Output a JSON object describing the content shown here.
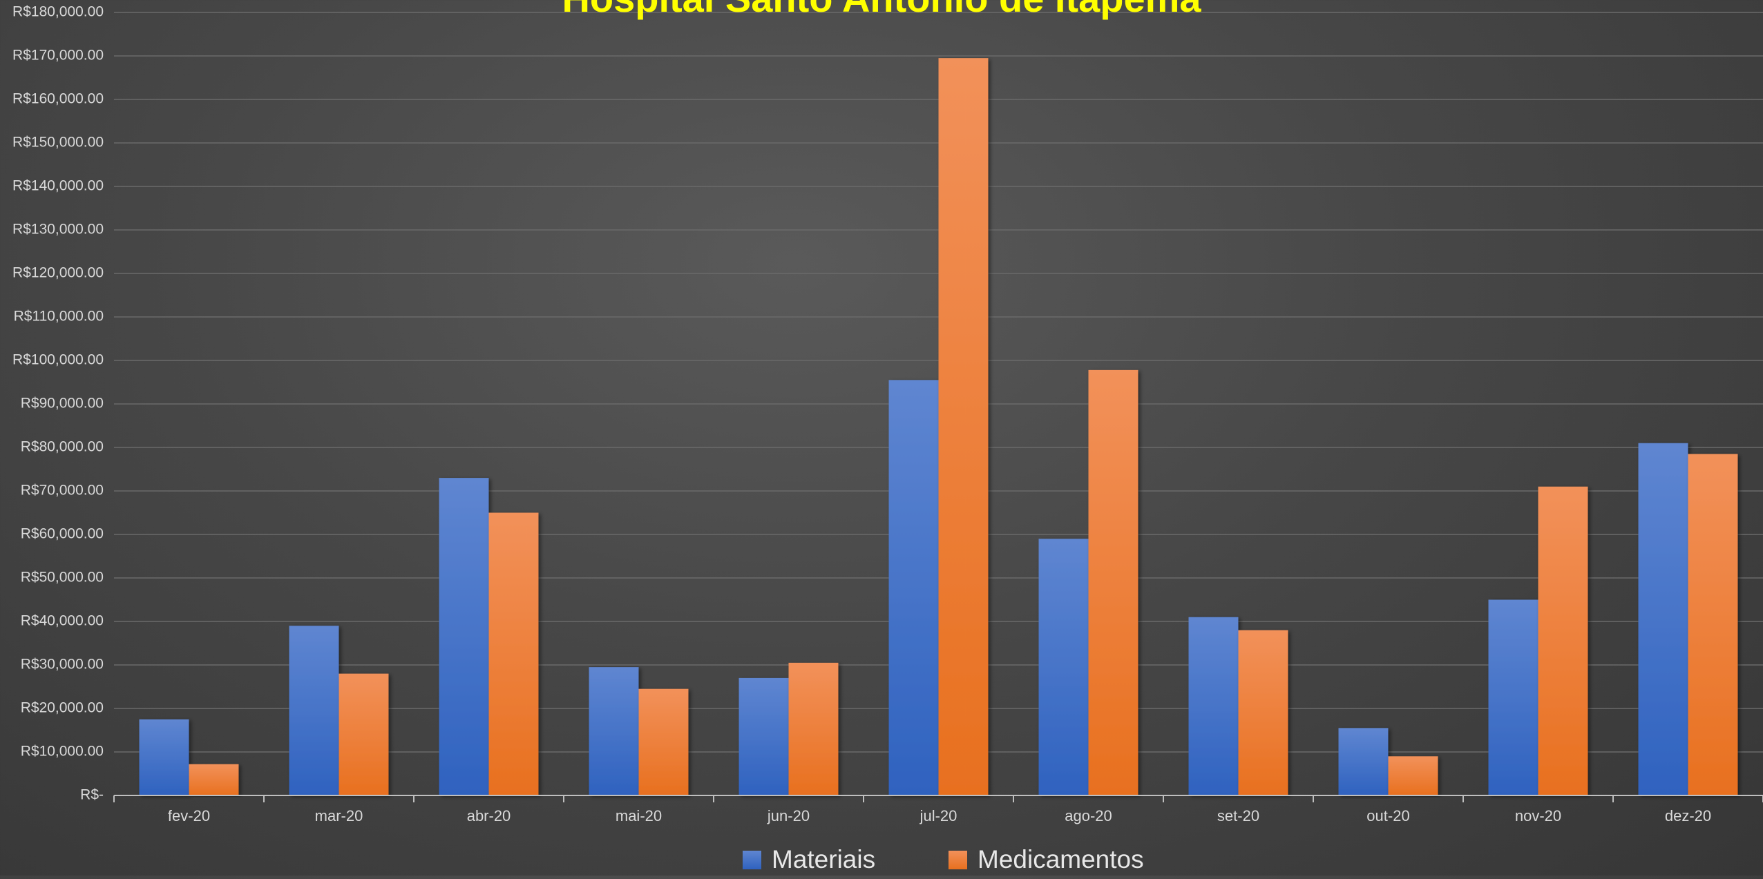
{
  "colors": {
    "materiais": "#4472c4",
    "medicamentos": "#ed7d31",
    "title": "#ffff00",
    "axis_text": "#d9d9d9",
    "legend_text": "#e8e8e8",
    "gridline": "#6a6a6a",
    "axis_line": "#bfbfbf"
  },
  "chart_data": {
    "type": "bar",
    "title": "Hospital Santo Antônio de Itapema",
    "xlabel": "",
    "ylabel": "",
    "categories": [
      "fev-20",
      "mar-20",
      "abr-20",
      "mai-20",
      "jun-20",
      "jul-20",
      "ago-20",
      "set-20",
      "out-20",
      "nov-20",
      "dez-20"
    ],
    "series": [
      {
        "name": "Materiais",
        "values": [
          17500,
          39000,
          73000,
          29500,
          27000,
          95500,
          59000,
          41000,
          15500,
          45000,
          81000
        ]
      },
      {
        "name": "Medicamentos",
        "values": [
          7200,
          28000,
          65000,
          24500,
          30500,
          169500,
          97800,
          38000,
          9000,
          71000,
          78500
        ]
      }
    ],
    "ylim": [
      0,
      180000
    ],
    "ytick_step": 10000,
    "yticks": [
      "R$-",
      "R$10,000.00",
      "R$20,000.00",
      "R$30,000.00",
      "R$40,000.00",
      "R$50,000.00",
      "R$60,000.00",
      "R$70,000.00",
      "R$80,000.00",
      "R$90,000.00",
      "R$100,000.00",
      "R$110,000.00",
      "R$120,000.00",
      "R$130,000.00",
      "R$140,000.00",
      "R$150,000.00",
      "R$160,000.00",
      "R$170,000.00",
      "R$180,000.00"
    ],
    "grid": true,
    "legend_position": "bottom"
  }
}
